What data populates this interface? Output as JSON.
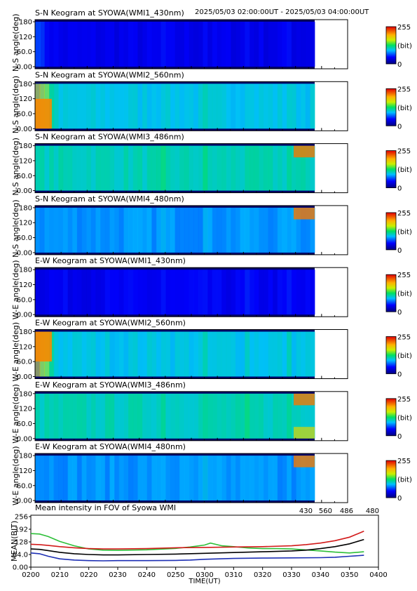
{
  "header": {
    "time_range": "2025/05/03 02:00:00UT - 2025/05/03 04:00:00UT"
  },
  "colorbar": {
    "max_label": "255",
    "unit_label": "(bit)",
    "min_label": "0"
  },
  "keogram_y_ticks": [
    "0.00",
    "60.0",
    "120",
    "180"
  ],
  "panels": [
    {
      "title": "S-N Keogram at SYOWA(WMI1_430nm)",
      "ylabel": "N-S angle(deg)",
      "level": 0.15,
      "blobs": [
        {
          "a": 0.0,
          "b": 0.08,
          "v": 0.1,
          "angle": "all"
        }
      ],
      "corner": "none"
    },
    {
      "title": "S-N Keogram at SYOWA(WMI2_560nm)",
      "ylabel": "N-S angle(deg)",
      "level": 0.38,
      "blobs": [
        {
          "a": 0.0,
          "b": 0.07,
          "v": 0.45,
          "angle": "low"
        }
      ],
      "corner": "none"
    },
    {
      "title": "S-N Keogram at SYOWA(WMI3_486nm)",
      "ylabel": "N-S angle(deg)",
      "level": 0.42,
      "blobs": [],
      "corner": "high"
    },
    {
      "title": "S-N Keogram at SYOWA(WMI4_480nm)",
      "ylabel": "N-S angle(deg)",
      "level": 0.32,
      "blobs": [],
      "corner": "high"
    },
    {
      "title": "E-W Keogram at SYOWA(WMI1_430nm)",
      "ylabel": "W-E angle(deg)",
      "level": 0.16,
      "blobs": [],
      "corner": "none"
    },
    {
      "title": "E-W Keogram at SYOWA(WMI2_560nm)",
      "ylabel": "W-E angle(deg)",
      "level": 0.38,
      "blobs": [
        {
          "a": 0.0,
          "b": 0.07,
          "v": 0.45,
          "angle": "high"
        }
      ],
      "corner": "none"
    },
    {
      "title": "E-W Keogram at SYOWA(WMI3_486nm)",
      "ylabel": "W-E angle(deg)",
      "level": 0.42,
      "blobs": [],
      "corner": "both"
    },
    {
      "title": "E-W Keogram at SYOWA(WMI4_480nm)",
      "ylabel": "W-E angle(deg)",
      "level": 0.32,
      "blobs": [],
      "corner": "high"
    }
  ],
  "chart_data": {
    "type": "line",
    "title": "Mean intensity in FOV of Syowa WMI",
    "xlabel": "TIME(UT)",
    "ylabel": "MEAN(BIT)",
    "x_ticks": [
      "0200",
      "0210",
      "0220",
      "0230",
      "0240",
      "0250",
      "0300",
      "0310",
      "0320",
      "0330",
      "0340",
      "0350",
      "0400"
    ],
    "y_ticks": [
      "0.00",
      "64.0",
      "128",
      "192",
      "256"
    ],
    "xlim": [
      0,
      120
    ],
    "ylim": [
      0,
      256
    ],
    "series": [
      {
        "name": "430",
        "color": "#1d2fb4",
        "x": [
          0,
          3,
          6,
          10,
          15,
          20,
          25,
          30,
          40,
          50,
          55,
          60,
          65,
          70,
          80,
          90,
          100,
          105,
          110,
          115
        ],
        "values": [
          72,
          68,
          55,
          42,
          36,
          33,
          32,
          33,
          33,
          34,
          36,
          40,
          42,
          44,
          46,
          47,
          48,
          50,
          55,
          60
        ]
      },
      {
        "name": "560",
        "color": "#2dbf38",
        "x": [
          0,
          3,
          6,
          10,
          15,
          20,
          25,
          30,
          40,
          50,
          55,
          60,
          62,
          66,
          70,
          75,
          80,
          85,
          90,
          100,
          105,
          110,
          115
        ],
        "values": [
          170,
          168,
          155,
          130,
          108,
          92,
          86,
          85,
          88,
          95,
          102,
          112,
          122,
          108,
          104,
          97,
          94,
          94,
          92,
          82,
          76,
          72,
          78
        ]
      },
      {
        "name": "486",
        "color": "#d21a1a",
        "x": [
          0,
          3,
          6,
          10,
          15,
          20,
          25,
          30,
          40,
          50,
          60,
          70,
          80,
          90,
          95,
          100,
          105,
          110,
          115
        ],
        "values": [
          116,
          114,
          110,
          104,
          98,
          94,
          92,
          92,
          94,
          98,
          100,
          102,
          104,
          108,
          114,
          122,
          134,
          152,
          182
        ]
      },
      {
        "name": "480",
        "color": "#000000",
        "x": [
          0,
          3,
          6,
          10,
          15,
          20,
          25,
          30,
          40,
          50,
          60,
          70,
          80,
          90,
          95,
          100,
          105,
          110,
          115
        ],
        "values": [
          92,
          90,
          84,
          75,
          68,
          64,
          62,
          62,
          64,
          66,
          70,
          74,
          78,
          82,
          86,
          94,
          104,
          118,
          140
        ]
      }
    ]
  }
}
